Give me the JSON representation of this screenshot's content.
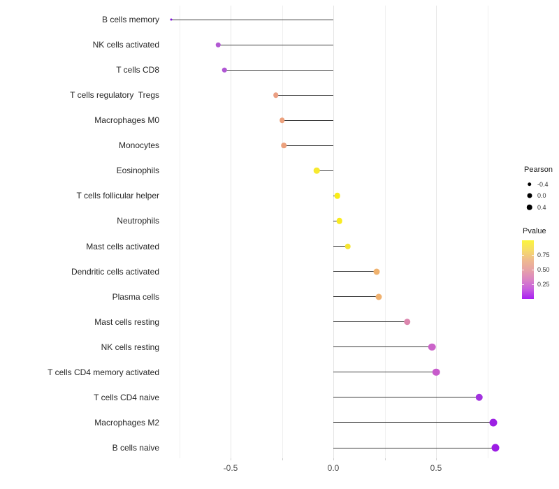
{
  "chart_data": {
    "type": "lollipop",
    "title": "",
    "xlabel": "",
    "ylabel": "",
    "xlim": [
      -0.82,
      0.8
    ],
    "grid": "vertical-only",
    "x_tick_labels": [
      {
        "value": -0.5,
        "label": "-0.5"
      },
      {
        "value": 0.0,
        "label": "0.0"
      },
      {
        "value": 0.5,
        "label": "0.5"
      }
    ],
    "x_axis_ticks": [
      -0.5,
      -0.25,
      0.0,
      0.25,
      0.5
    ],
    "x_gridlines_major": [
      -0.5,
      0.0,
      0.5
    ],
    "x_gridlines_minor": [
      -0.75,
      -0.25,
      0.25,
      0.75
    ],
    "stem_color": "#3c3c3c",
    "points": [
      {
        "label": "B cells memory",
        "pearson": -0.79,
        "pvalue_est": 0.01,
        "color": "#8012db",
        "size": 3
      },
      {
        "label": "NK cells activated",
        "pearson": -0.56,
        "pvalue_est": 0.2,
        "color": "#b259d3",
        "size": 6.5
      },
      {
        "label": "T cells CD8",
        "pearson": -0.53,
        "pvalue_est": 0.2,
        "color": "#b057d4",
        "size": 6.5
      },
      {
        "label": "T cells regulatory  Tregs",
        "pearson": -0.28,
        "pvalue_est": 0.62,
        "color": "#eb9f83",
        "size": 7.5
      },
      {
        "label": "Macrophages M0",
        "pearson": -0.25,
        "pvalue_est": 0.62,
        "color": "#eca17d",
        "size": 7.5
      },
      {
        "label": "Monocytes",
        "pearson": -0.24,
        "pvalue_est": 0.62,
        "color": "#eca17d",
        "size": 7.5
      },
      {
        "label": "Eosinophils",
        "pearson": -0.08,
        "pvalue_est": 0.92,
        "color": "#f7e92f",
        "size": 8.5
      },
      {
        "label": "T cells follicular helper",
        "pearson": 0.02,
        "pvalue_est": 0.95,
        "color": "#f9ec19",
        "size": 8.5
      },
      {
        "label": "Neutrophils",
        "pearson": 0.03,
        "pvalue_est": 0.95,
        "color": "#f9eb20",
        "size": 8.5
      },
      {
        "label": "Mast cells activated",
        "pearson": 0.07,
        "pvalue_est": 0.9,
        "color": "#f6e532",
        "size": 8.5
      },
      {
        "label": "Dendritic cells activated",
        "pearson": 0.21,
        "pvalue_est": 0.7,
        "color": "#f0b26e",
        "size": 9
      },
      {
        "label": "Plasma cells",
        "pearson": 0.22,
        "pvalue_est": 0.7,
        "color": "#f0b16f",
        "size": 9
      },
      {
        "label": "Mast cells resting",
        "pearson": 0.36,
        "pvalue_est": 0.42,
        "color": "#dc86ae",
        "size": 9.5
      },
      {
        "label": "NK cells resting",
        "pearson": 0.48,
        "pvalue_est": 0.32,
        "color": "#cb64c9",
        "size": 10.5
      },
      {
        "label": "T cells CD4 memory activated",
        "pearson": 0.5,
        "pvalue_est": 0.3,
        "color": "#c75bcb",
        "size": 10.5
      },
      {
        "label": "T cells CD4 naive",
        "pearson": 0.71,
        "pvalue_est": 0.1,
        "color": "#a233df",
        "size": 10.5
      },
      {
        "label": "Macrophages M2",
        "pearson": 0.78,
        "pvalue_est": 0.06,
        "color": "#9c20e3",
        "size": 11
      },
      {
        "label": "B cells naive",
        "pearson": 0.79,
        "pvalue_est": 0.06,
        "color": "#9c1de4",
        "size": 11
      }
    ],
    "legend": {
      "pearson": {
        "title": "Pearson",
        "dot_color": "#000000",
        "entries": [
          {
            "label": "-0.4",
            "size": 5.5
          },
          {
            "label": "0.0",
            "size": 7
          },
          {
            "label": "0.4",
            "size": 8.5
          }
        ]
      },
      "pvalue": {
        "title": "Pvalue",
        "gradient_top_to_bottom": [
          "#fbf43c",
          "#f6dc69",
          "#efbb8e",
          "#e7a3a6",
          "#db85c3",
          "#c75fde",
          "#a81ff2"
        ],
        "labels": [
          {
            "label": "0.75",
            "frac_from_top": 0.25
          },
          {
            "label": "0.50",
            "frac_from_top": 0.5
          },
          {
            "label": "0.25",
            "frac_from_top": 0.75
          }
        ]
      }
    }
  }
}
